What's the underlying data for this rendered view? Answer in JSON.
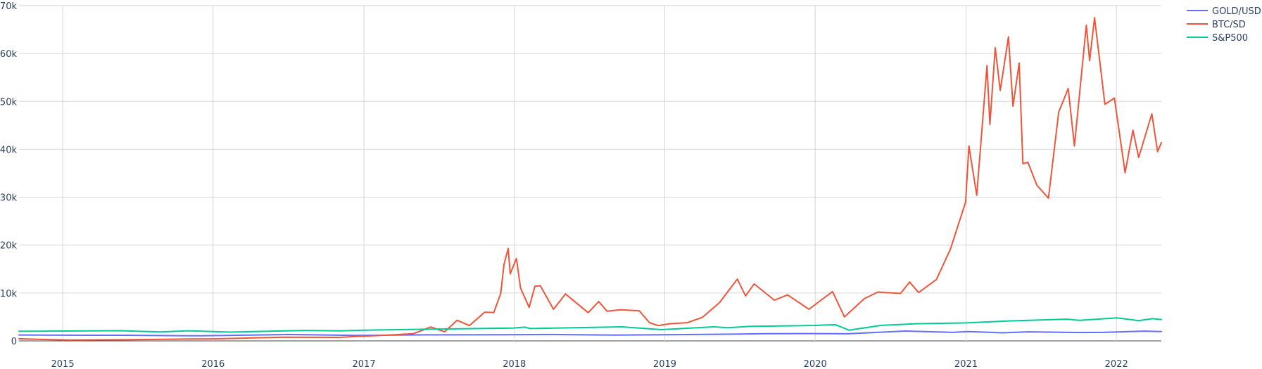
{
  "chart_data": {
    "type": "line",
    "title": "",
    "xlabel": "",
    "ylabel": "",
    "grid": true,
    "legend_position": "top-right",
    "x_range": [
      "2014-09-17",
      "2022-04-20"
    ],
    "y_range": [
      0,
      70000
    ],
    "x_ticks": [
      {
        "date": "2015-01-01",
        "label": "2015"
      },
      {
        "date": "2016-01-01",
        "label": "2016"
      },
      {
        "date": "2017-01-01",
        "label": "2017"
      },
      {
        "date": "2018-01-01",
        "label": "2018"
      },
      {
        "date": "2019-01-01",
        "label": "2019"
      },
      {
        "date": "2020-01-01",
        "label": "2020"
      },
      {
        "date": "2021-01-01",
        "label": "2021"
      },
      {
        "date": "2022-01-01",
        "label": "2022"
      }
    ],
    "y_ticks": [
      {
        "value": 0,
        "label": "0"
      },
      {
        "value": 10000,
        "label": "10k"
      },
      {
        "value": 20000,
        "label": "20k"
      },
      {
        "value": 30000,
        "label": "30k"
      },
      {
        "value": 40000,
        "label": "40k"
      },
      {
        "value": 50000,
        "label": "50k"
      },
      {
        "value": 60000,
        "label": "60k"
      },
      {
        "value": 70000,
        "label": "70k"
      }
    ],
    "series": [
      {
        "name": "GOLD/USD",
        "color": "#636efa",
        "points": [
          [
            "2014-09-17",
            1230
          ],
          [
            "2015-01-01",
            1190
          ],
          [
            "2015-06-01",
            1180
          ],
          [
            "2015-12-01",
            1060
          ],
          [
            "2016-07-01",
            1330
          ],
          [
            "2016-12-15",
            1130
          ],
          [
            "2017-06-01",
            1260
          ],
          [
            "2017-12-01",
            1280
          ],
          [
            "2018-04-01",
            1330
          ],
          [
            "2018-09-01",
            1200
          ],
          [
            "2019-01-01",
            1290
          ],
          [
            "2019-06-01",
            1400
          ],
          [
            "2019-09-01",
            1500
          ],
          [
            "2020-01-01",
            1520
          ],
          [
            "2020-03-20",
            1480
          ],
          [
            "2020-08-06",
            2060
          ],
          [
            "2020-11-30",
            1780
          ],
          [
            "2021-01-05",
            1950
          ],
          [
            "2021-03-30",
            1690
          ],
          [
            "2021-06-01",
            1900
          ],
          [
            "2021-09-30",
            1750
          ],
          [
            "2021-12-01",
            1780
          ],
          [
            "2022-03-08",
            2040
          ],
          [
            "2022-04-20",
            1950
          ]
        ]
      },
      {
        "name": "BTC/SD",
        "color": "#ef553b",
        "points": [
          [
            "2014-09-17",
            460
          ],
          [
            "2014-11-01",
            330
          ],
          [
            "2015-01-14",
            180
          ],
          [
            "2015-06-01",
            230
          ],
          [
            "2015-11-04",
            400
          ],
          [
            "2016-01-01",
            430
          ],
          [
            "2016-06-17",
            760
          ],
          [
            "2016-11-01",
            730
          ],
          [
            "2017-01-01",
            1000
          ],
          [
            "2017-03-01",
            1200
          ],
          [
            "2017-05-01",
            1500
          ],
          [
            "2017-06-12",
            2900
          ],
          [
            "2017-07-16",
            1900
          ],
          [
            "2017-08-15",
            4300
          ],
          [
            "2017-09-14",
            3200
          ],
          [
            "2017-10-21",
            6000
          ],
          [
            "2017-11-12",
            5900
          ],
          [
            "2017-11-29",
            9900
          ],
          [
            "2017-12-07",
            16000
          ],
          [
            "2017-12-17",
            19300
          ],
          [
            "2017-12-22",
            14000
          ],
          [
            "2018-01-06",
            17200
          ],
          [
            "2018-01-16",
            11000
          ],
          [
            "2018-02-06",
            7000
          ],
          [
            "2018-02-20",
            11400
          ],
          [
            "2018-03-05",
            11500
          ],
          [
            "2018-04-06",
            6600
          ],
          [
            "2018-05-05",
            9800
          ],
          [
            "2018-06-29",
            5900
          ],
          [
            "2018-07-25",
            8200
          ],
          [
            "2018-08-14",
            6200
          ],
          [
            "2018-09-15",
            6500
          ],
          [
            "2018-10-31",
            6300
          ],
          [
            "2018-11-25",
            3800
          ],
          [
            "2018-12-15",
            3200
          ],
          [
            "2019-01-15",
            3600
          ],
          [
            "2019-02-25",
            3800
          ],
          [
            "2019-04-02",
            4900
          ],
          [
            "2019-05-14",
            8000
          ],
          [
            "2019-06-26",
            12900
          ],
          [
            "2019-07-16",
            9400
          ],
          [
            "2019-08-06",
            11900
          ],
          [
            "2019-09-24",
            8500
          ],
          [
            "2019-10-26",
            9600
          ],
          [
            "2019-12-17",
            6600
          ],
          [
            "2020-02-12",
            10300
          ],
          [
            "2020-03-12",
            5000
          ],
          [
            "2020-04-29",
            8800
          ],
          [
            "2020-06-01",
            10200
          ],
          [
            "2020-07-26",
            9900
          ],
          [
            "2020-08-17",
            12300
          ],
          [
            "2020-09-08",
            10100
          ],
          [
            "2020-10-21",
            12800
          ],
          [
            "2020-11-24",
            19100
          ],
          [
            "2020-12-31",
            29000
          ],
          [
            "2021-01-08",
            40700
          ],
          [
            "2021-01-27",
            30400
          ],
          [
            "2021-02-21",
            57500
          ],
          [
            "2021-02-28",
            45200
          ],
          [
            "2021-03-13",
            61200
          ],
          [
            "2021-03-25",
            52300
          ],
          [
            "2021-04-14",
            63500
          ],
          [
            "2021-04-25",
            49000
          ],
          [
            "2021-05-10",
            58000
          ],
          [
            "2021-05-19",
            37000
          ],
          [
            "2021-05-31",
            37300
          ],
          [
            "2021-06-22",
            32500
          ],
          [
            "2021-07-20",
            29800
          ],
          [
            "2021-08-14",
            47800
          ],
          [
            "2021-09-06",
            52700
          ],
          [
            "2021-09-21",
            40700
          ],
          [
            "2021-10-20",
            65900
          ],
          [
            "2021-10-28",
            58500
          ],
          [
            "2021-11-09",
            67500
          ],
          [
            "2021-12-04",
            49400
          ],
          [
            "2021-12-27",
            50700
          ],
          [
            "2022-01-22",
            35100
          ],
          [
            "2022-02-10",
            44000
          ],
          [
            "2022-02-24",
            38300
          ],
          [
            "2022-03-28",
            47400
          ],
          [
            "2022-04-11",
            39500
          ],
          [
            "2022-04-20",
            41400
          ]
        ]
      },
      {
        "name": "S&P500",
        "color": "#00cc96",
        "points": [
          [
            "2014-09-17",
            2000
          ],
          [
            "2015-01-01",
            2060
          ],
          [
            "2015-05-20",
            2130
          ],
          [
            "2015-08-25",
            1870
          ],
          [
            "2015-11-03",
            2110
          ],
          [
            "2016-02-11",
            1830
          ],
          [
            "2016-08-15",
            2190
          ],
          [
            "2016-11-04",
            2085
          ],
          [
            "2017-01-02",
            2250
          ],
          [
            "2017-06-01",
            2430
          ],
          [
            "2017-12-29",
            2670
          ],
          [
            "2018-01-26",
            2870
          ],
          [
            "2018-02-08",
            2580
          ],
          [
            "2018-09-20",
            2930
          ],
          [
            "2018-12-24",
            2350
          ],
          [
            "2019-04-30",
            2940
          ],
          [
            "2019-06-03",
            2740
          ],
          [
            "2019-07-26",
            3025
          ],
          [
            "2019-12-31",
            3230
          ],
          [
            "2020-02-19",
            3390
          ],
          [
            "2020-03-23",
            2240
          ],
          [
            "2020-06-08",
            3230
          ],
          [
            "2020-09-02",
            3580
          ],
          [
            "2020-12-31",
            3760
          ],
          [
            "2021-04-15",
            4170
          ],
          [
            "2021-09-02",
            4540
          ],
          [
            "2021-10-04",
            4300
          ],
          [
            "2022-01-03",
            4800
          ],
          [
            "2022-02-24",
            4220
          ],
          [
            "2022-03-29",
            4630
          ],
          [
            "2022-04-20",
            4460
          ]
        ]
      }
    ]
  }
}
